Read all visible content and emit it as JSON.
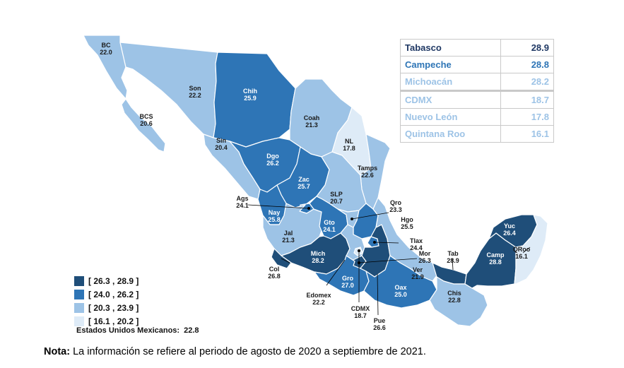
{
  "colors": {
    "class1": "#1f4e79",
    "class2": "#2e75b6",
    "class3": "#9dc3e6",
    "class4": "#deebf7"
  },
  "states": [
    {
      "id": "bc",
      "abbr": "BC",
      "value": "22.0"
    },
    {
      "id": "bcs",
      "abbr": "BCS",
      "value": "20.6"
    },
    {
      "id": "son",
      "abbr": "Son",
      "value": "22.2"
    },
    {
      "id": "chih",
      "abbr": "Chih",
      "value": "25.9"
    },
    {
      "id": "coah",
      "abbr": "Coah",
      "value": "21.3"
    },
    {
      "id": "nl",
      "abbr": "NL",
      "value": "17.8"
    },
    {
      "id": "tamps",
      "abbr": "Tamps",
      "value": "22.6"
    },
    {
      "id": "sin",
      "abbr": "Sin",
      "value": "20.4"
    },
    {
      "id": "dgo",
      "abbr": "Dgo",
      "value": "26.2"
    },
    {
      "id": "zac",
      "abbr": "Zac",
      "value": "25.7"
    },
    {
      "id": "slp",
      "abbr": "SLP",
      "value": "20.7"
    },
    {
      "id": "ags",
      "abbr": "Ags",
      "value": "24.1"
    },
    {
      "id": "nay",
      "abbr": "Nay",
      "value": "25.8"
    },
    {
      "id": "jal",
      "abbr": "Jal",
      "value": "21.3"
    },
    {
      "id": "gto",
      "abbr": "Gto",
      "value": "24.1"
    },
    {
      "id": "qro",
      "abbr": "Qro",
      "value": "23.3"
    },
    {
      "id": "hgo",
      "abbr": "Hgo",
      "value": "25.5"
    },
    {
      "id": "tlax",
      "abbr": "Tlax",
      "value": "24.4"
    },
    {
      "id": "mich",
      "abbr": "Mich",
      "value": "28.2"
    },
    {
      "id": "col",
      "abbr": "Col",
      "value": "26.8"
    },
    {
      "id": "edomex",
      "abbr": "Edomex",
      "value": "22.2"
    },
    {
      "id": "gro",
      "abbr": "Gro",
      "value": "27.0"
    },
    {
      "id": "cdmx",
      "abbr": "CDMX",
      "value": "18.7"
    },
    {
      "id": "mor",
      "abbr": "Mor",
      "value": "26.3"
    },
    {
      "id": "pue",
      "abbr": "Pue",
      "value": "26.6"
    },
    {
      "id": "ver",
      "abbr": "Ver",
      "value": "21.9"
    },
    {
      "id": "oax",
      "abbr": "Oax",
      "value": "25.0"
    },
    {
      "id": "tab",
      "abbr": "Tab",
      "value": "28.9"
    },
    {
      "id": "chis",
      "abbr": "Chis",
      "value": "22.8"
    },
    {
      "id": "camp",
      "abbr": "Camp",
      "value": "28.8"
    },
    {
      "id": "yuc",
      "abbr": "Yuc",
      "value": "26.4"
    },
    {
      "id": "qroo",
      "abbr": "QRoo",
      "value": "16.1"
    }
  ],
  "ranking": [
    {
      "name": "Tabasco",
      "value": "28.9",
      "color": "#1f3864"
    },
    {
      "name": "Campeche",
      "value": "28.8",
      "color": "#2e75b6"
    },
    {
      "name": "Michoacán",
      "value": "28.2",
      "color": "#9dc3e6"
    },
    {
      "name": "CDMX",
      "value": "18.7",
      "color": "#9dc3e6"
    },
    {
      "name": "Nuevo León",
      "value": "17.8",
      "color": "#9dc3e6"
    },
    {
      "name": "Quintana Roo",
      "value": "16.1",
      "color": "#9dc3e6"
    }
  ],
  "legend": [
    {
      "label": "[ 26.3 , 28.9 ]",
      "color": "#1f4e79"
    },
    {
      "label": "[ 24.0 , 26.2 ]",
      "color": "#2e75b6"
    },
    {
      "label": "[ 20.3 , 23.9 ]",
      "color": "#9dc3e6"
    },
    {
      "label": "[ 16.1 , 20.2 ]",
      "color": "#deebf7"
    }
  ],
  "national": {
    "label": "Estados Unidos Mexicanos:",
    "value": "22.8"
  },
  "note": {
    "bold": "Nota:",
    "text": " La información se refiere al periodo de agosto de 2020 a septiembre de 2021."
  }
}
